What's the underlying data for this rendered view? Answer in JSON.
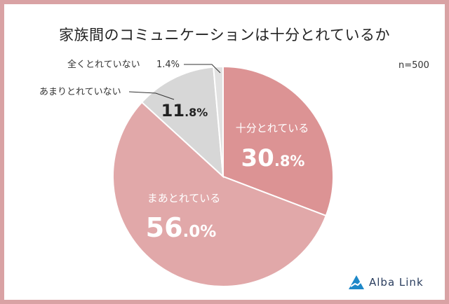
{
  "header": {
    "title": "家族間のコミュニケーションは十分とれているか",
    "sample_size": "n=500"
  },
  "brand": {
    "name": "Alba Link"
  },
  "colors": {
    "frame": "#d9a2a4",
    "slice_sufficient": "#dc9394",
    "slice_somewhat": "#e1a8a9",
    "slice_rarely": "#d7d7d7",
    "slice_none": "#e2e2e2",
    "logo": "#1e88c8"
  },
  "chart_data": {
    "type": "pie",
    "title": "家族間のコミュニケーションは十分とれているか",
    "categories": [
      "十分とれている",
      "まあとれている",
      "あまりとれていない",
      "全くとれていない"
    ],
    "values": [
      30.8,
      56.0,
      11.8,
      1.4
    ],
    "labels": [
      {
        "category": "十分とれている",
        "value_main": "30",
        "value_dec": ".8%"
      },
      {
        "category": "まあとれている",
        "value_main": "56",
        "value_dec": ".0%"
      },
      {
        "category": "あまりとれていない",
        "value_main": "11",
        "value_dec": ".8%"
      },
      {
        "category": "全くとれていない",
        "value_text": "1.4%"
      }
    ]
  }
}
